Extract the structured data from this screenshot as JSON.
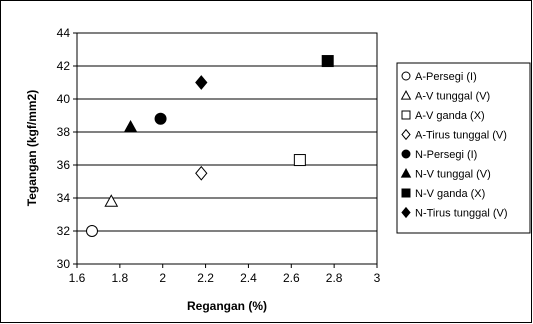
{
  "chart_data": {
    "type": "scatter",
    "title": "",
    "xlabel": "Regangan (%)",
    "ylabel": "Tegangan (kgf/mm2)",
    "xlim": [
      1.6,
      3
    ],
    "ylim": [
      30,
      44
    ],
    "x_ticks": [
      1.6,
      1.8,
      2,
      2.2,
      2.4,
      2.6,
      2.8,
      3
    ],
    "y_ticks": [
      30,
      32,
      34,
      36,
      38,
      40,
      42,
      44
    ],
    "x_tick_labels": [
      "1.6",
      "1.8",
      "2",
      "2.2",
      "2.4",
      "2.6",
      "2.8",
      "3"
    ],
    "y_tick_labels": [
      "30",
      "32",
      "34",
      "36",
      "38",
      "40",
      "42",
      "44"
    ],
    "grid": "horizontal",
    "legend_position": "right",
    "series": [
      {
        "name": "A-Persegi (I)",
        "marker": "circle-open",
        "color": "#000000",
        "points": [
          {
            "x": 1.67,
            "y": 32.0
          }
        ]
      },
      {
        "name": "A-V tunggal (V)",
        "marker": "triangle-open",
        "color": "#000000",
        "points": [
          {
            "x": 1.76,
            "y": 33.8
          }
        ]
      },
      {
        "name": "A-V ganda (X)",
        "marker": "square-open",
        "color": "#000000",
        "points": [
          {
            "x": 2.64,
            "y": 36.3
          }
        ]
      },
      {
        "name": "A-Tirus tunggal (V)",
        "marker": "diamond-open",
        "color": "#000000",
        "points": [
          {
            "x": 2.18,
            "y": 35.5
          }
        ]
      },
      {
        "name": "N-Persegi (I)",
        "marker": "circle-filled",
        "color": "#000000",
        "points": [
          {
            "x": 1.99,
            "y": 38.8
          }
        ]
      },
      {
        "name": "N-V tunggal (V)",
        "marker": "triangle-filled",
        "color": "#000000",
        "points": [
          {
            "x": 1.85,
            "y": 38.3
          }
        ]
      },
      {
        "name": "N-V ganda (X)",
        "marker": "square-filled",
        "color": "#000000",
        "points": [
          {
            "x": 2.77,
            "y": 42.3
          }
        ]
      },
      {
        "name": "N-Tirus tunggal (V)",
        "marker": "diamond-filled",
        "color": "#000000",
        "points": [
          {
            "x": 2.18,
            "y": 41.0
          }
        ]
      }
    ]
  }
}
